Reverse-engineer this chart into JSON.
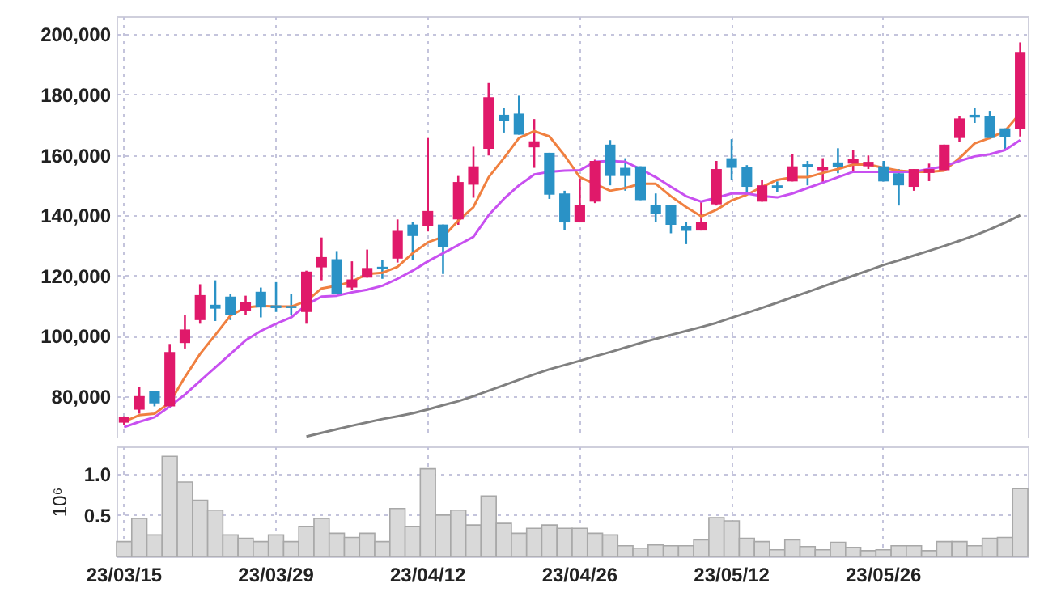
{
  "chart_data": [
    {
      "type": "candlestick",
      "categories": [
        null,
        null,
        null,
        null,
        null,
        null,
        null,
        null,
        null,
        null,
        null,
        null,
        null,
        null,
        null,
        null,
        null,
        null,
        null,
        null,
        null,
        null,
        null,
        null,
        null,
        null,
        null,
        null,
        null,
        null,
        null,
        null,
        null,
        null,
        null,
        null,
        null,
        null,
        null,
        null,
        null,
        null,
        null,
        null,
        null,
        null,
        null,
        null,
        null,
        null,
        null,
        null,
        null,
        null,
        null,
        null,
        null,
        null,
        null,
        null
      ],
      "ohlc": [
        [
          71200,
          73300,
          70300,
          73000
        ],
        [
          75500,
          83000,
          74200,
          80000
        ],
        [
          81800,
          81800,
          76600,
          77600
        ],
        [
          76600,
          97300,
          76000,
          94600
        ],
        [
          97600,
          107000,
          95800,
          102100
        ],
        [
          105200,
          117100,
          104000,
          113500
        ],
        [
          110300,
          118400,
          104900,
          109000
        ],
        [
          113000,
          113900,
          105200,
          107000
        ],
        [
          108100,
          113300,
          107000,
          111200
        ],
        [
          114600,
          116000,
          106100,
          109400
        ],
        [
          110100,
          117800,
          107900,
          109200
        ],
        [
          109900,
          113900,
          107000,
          109200
        ],
        [
          107900,
          121600,
          104000,
          121300
        ],
        [
          122700,
          132600,
          118400,
          126100
        ],
        [
          125400,
          128100,
          113900,
          113900
        ],
        [
          116000,
          124700,
          115100,
          118700
        ],
        [
          119300,
          128600,
          119300,
          122500
        ],
        [
          122900,
          125200,
          118900,
          122300
        ],
        [
          125600,
          138600,
          124300,
          134800
        ],
        [
          136900,
          137800,
          125200,
          133100
        ],
        [
          136400,
          165600,
          134600,
          141400
        ],
        [
          136900,
          136900,
          120500,
          129500
        ],
        [
          138600,
          153000,
          136800,
          151000
        ],
        [
          150100,
          162700,
          145800,
          156200
        ],
        [
          162000,
          183800,
          159800,
          179100
        ],
        [
          173300,
          175700,
          167400,
          171300
        ],
        [
          173700,
          179600,
          166700,
          166700
        ],
        [
          162500,
          171900,
          155700,
          164500
        ],
        [
          160700,
          160700,
          145400,
          146800
        ],
        [
          147200,
          148100,
          135100,
          137600
        ],
        [
          137600,
          152100,
          137600,
          143400
        ],
        [
          144500,
          158400,
          144000,
          158000
        ],
        [
          163400,
          164900,
          149900,
          153000
        ],
        [
          155700,
          158900,
          148100,
          153000
        ],
        [
          156200,
          156200,
          145000,
          145000
        ],
        [
          143400,
          147200,
          137800,
          140400
        ],
        [
          143400,
          143400,
          134000,
          136800
        ],
        [
          136400,
          137800,
          130400,
          134800
        ],
        [
          134900,
          144500,
          134900,
          137800
        ],
        [
          143600,
          158000,
          143200,
          155300
        ],
        [
          158900,
          165200,
          151700,
          155700
        ],
        [
          155900,
          156600,
          147200,
          149400
        ],
        [
          144500,
          151700,
          144500,
          149900
        ],
        [
          149900,
          151200,
          147600,
          149000
        ],
        [
          151200,
          160200,
          151200,
          156200
        ],
        [
          156900,
          158000,
          149900,
          156000
        ],
        [
          154900,
          158900,
          150300,
          155900
        ],
        [
          157500,
          162200,
          153900,
          156000
        ],
        [
          157100,
          161600,
          154400,
          158600
        ],
        [
          156200,
          159800,
          155300,
          157700
        ],
        [
          156200,
          158000,
          151200,
          151200
        ],
        [
          153900,
          155300,
          143200,
          149900
        ],
        [
          149400,
          155300,
          148100,
          155300
        ],
        [
          154000,
          157100,
          151300,
          155300
        ],
        [
          154900,
          163400,
          154900,
          163400
        ],
        [
          165600,
          173000,
          164300,
          172100
        ],
        [
          173300,
          175700,
          170600,
          172400
        ],
        [
          172800,
          174600,
          165200,
          165600
        ],
        [
          168800,
          168800,
          161600,
          165800
        ],
        [
          168500,
          197300,
          166100,
          194100
        ]
      ],
      "colors": [
        "#e0196a",
        "#e0196a",
        "#2a92c6",
        "#e0196a",
        "#e0196a",
        "#e0196a",
        "#2a92c6",
        "#2a92c6",
        "#e0196a",
        "#2a92c6",
        "#2a92c6",
        "#2a92c6",
        "#e0196a",
        "#e0196a",
        "#2a92c6",
        "#e0196a",
        "#e0196a",
        "#2a92c6",
        "#e0196a",
        "#2a92c6",
        "#e0196a",
        "#2a92c6",
        "#e0196a",
        "#e0196a",
        "#e0196a",
        "#2a92c6",
        "#2a92c6",
        "#e0196a",
        "#2a92c6",
        "#2a92c6",
        "#e0196a",
        "#e0196a",
        "#2a92c6",
        "#2a92c6",
        "#2a92c6",
        "#2a92c6",
        "#2a92c6",
        "#2a92c6",
        "#e0196a",
        "#e0196a",
        "#2a92c6",
        "#2a92c6",
        "#e0196a",
        "#2a92c6",
        "#e0196a",
        "#2a92c6",
        "#e0196a",
        "#2a92c6",
        "#e0196a",
        "#e0196a",
        "#2a92c6",
        "#2a92c6",
        "#e0196a",
        "#e0196a",
        "#e0196a",
        "#e0196a",
        "#2a92c6",
        "#2a92c6",
        "#2a92c6",
        "#e0196a"
      ],
      "series": [
        {
          "type": "line",
          "color": "#f08040",
          "values": [
            71500,
            73700,
            74200,
            77800,
            86300,
            94000,
            100300,
            106700,
            109400,
            109900,
            109700,
            109700,
            111500,
            115700,
            116600,
            118000,
            120500,
            120900,
            122900,
            127400,
            131000,
            132800,
            138200,
            142700,
            152600,
            158900,
            165600,
            167900,
            166100,
            159800,
            152600,
            150400,
            148100,
            149000,
            150400,
            150400,
            146300,
            142700,
            139600,
            141800,
            144900,
            146800,
            149400,
            151700,
            152600,
            152600,
            154000,
            155300,
            156800,
            156800,
            155700,
            154800,
            154400,
            154400,
            154800,
            158900,
            163800,
            165600,
            167900,
            173900
          ]
        },
        {
          "type": "line",
          "color": "#c850f0",
          "values": [
            69700,
            71500,
            73000,
            76600,
            80500,
            85000,
            89500,
            94000,
            98500,
            101600,
            104000,
            106100,
            110300,
            113000,
            113300,
            114400,
            115300,
            116600,
            118900,
            121600,
            124700,
            127400,
            130100,
            132800,
            140000,
            145400,
            149900,
            153500,
            154400,
            154800,
            154900,
            157700,
            158000,
            157700,
            155300,
            152600,
            149400,
            146300,
            144500,
            145800,
            147200,
            147200,
            146300,
            145900,
            147200,
            149000,
            150800,
            152600,
            154400,
            154400,
            154400,
            154400,
            154400,
            155300,
            156200,
            158000,
            159500,
            160200,
            161600,
            164900
          ]
        },
        {
          "type": "line",
          "color": "#808080",
          "values": [
            null,
            null,
            null,
            null,
            null,
            null,
            null,
            null,
            null,
            null,
            null,
            null,
            66600,
            67800,
            69000,
            70200,
            71300,
            72400,
            73300,
            74300,
            75600,
            77000,
            78300,
            80000,
            81800,
            83600,
            85400,
            87200,
            88900,
            90300,
            91700,
            93200,
            94600,
            96100,
            97600,
            99000,
            100300,
            101600,
            102900,
            104300,
            106000,
            107600,
            109300,
            111000,
            112800,
            114500,
            116300,
            118100,
            119900,
            121700,
            123500,
            125000,
            126600,
            128200,
            129800,
            131500,
            133300,
            135300,
            137500,
            140000
          ]
        }
      ],
      "ylim": [
        66000,
        206000
      ],
      "yticks": [
        {
          "value": 80000,
          "label": "80,000"
        },
        {
          "value": 100000,
          "label": "100,000"
        },
        {
          "value": 120000,
          "label": "120,000"
        },
        {
          "value": 140000,
          "label": "140,000"
        },
        {
          "value": 160000,
          "label": "160,000"
        },
        {
          "value": 180000,
          "label": "180,000"
        },
        {
          "value": 200000,
          "label": "200,000"
        }
      ],
      "grid": true,
      "tick_labels": "y"
    },
    {
      "type": "bar",
      "categories": [
        "23/03/15",
        null,
        null,
        null,
        null,
        null,
        null,
        null,
        null,
        null,
        "23/03/29",
        null,
        null,
        null,
        null,
        null,
        null,
        null,
        null,
        null,
        "23/04/12",
        null,
        null,
        null,
        null,
        null,
        null,
        null,
        null,
        null,
        "23/04/26",
        null,
        null,
        null,
        null,
        null,
        null,
        null,
        null,
        null,
        "23/05/12",
        null,
        null,
        null,
        null,
        null,
        null,
        null,
        null,
        null,
        "23/05/26",
        null,
        null,
        null,
        null,
        null,
        null,
        null,
        null,
        null
      ],
      "values": [
        0.18,
        0.46,
        0.26,
        1.21,
        0.9,
        0.68,
        0.56,
        0.26,
        0.22,
        0.18,
        0.26,
        0.18,
        0.36,
        0.46,
        0.28,
        0.23,
        0.28,
        0.18,
        0.58,
        0.36,
        1.06,
        0.5,
        0.56,
        0.38,
        0.73,
        0.4,
        0.28,
        0.34,
        0.38,
        0.34,
        0.34,
        0.28,
        0.26,
        0.13,
        0.1,
        0.14,
        0.13,
        0.13,
        0.2,
        0.47,
        0.43,
        0.22,
        0.18,
        0.08,
        0.2,
        0.12,
        0.08,
        0.17,
        0.11,
        0.07,
        0.08,
        0.13,
        0.13,
        0.07,
        0.18,
        0.18,
        0.13,
        0.22,
        0.23,
        0.82
      ],
      "color": "#d9d9d9",
      "ylim": [
        0,
        1.33
      ],
      "yticks": [
        0.5,
        {
          "value": 1,
          "label": "1.0"
        }
      ],
      "ylabel": "10⁶",
      "grid": true
    }
  ]
}
